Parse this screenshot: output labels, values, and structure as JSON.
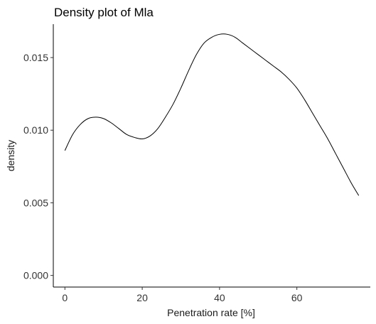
{
  "chart_data": {
    "type": "line",
    "title": "Density plot of Mla",
    "xlabel": "Penetration rate [%]",
    "ylabel": "density",
    "xlim": [
      -3,
      79
    ],
    "ylim": [
      -0.0008,
      0.0173
    ],
    "xticks": [
      0,
      20,
      40,
      60
    ],
    "xtick_labels": [
      "0",
      "20",
      "40",
      "60"
    ],
    "yticks": [
      0.0,
      0.005,
      0.01,
      0.015
    ],
    "ytick_labels": [
      "0.000",
      "0.005",
      "0.010",
      "0.015"
    ],
    "grid": false,
    "legend": "none",
    "series": [
      {
        "name": "density",
        "x": [
          0,
          2,
          4,
          6,
          8,
          10,
          12,
          14,
          16,
          18,
          20,
          22,
          24,
          26,
          28,
          30,
          32,
          34,
          36,
          38,
          40,
          42,
          44,
          46,
          48,
          50,
          52,
          54,
          56,
          58,
          60,
          62,
          64,
          66,
          68,
          70,
          72,
          74,
          76
        ],
        "y": [
          0.0086,
          0.0097,
          0.0104,
          0.0108,
          0.0109,
          0.0108,
          0.0105,
          0.0101,
          0.0097,
          0.0095,
          0.0094,
          0.0096,
          0.0101,
          0.0109,
          0.0118,
          0.0129,
          0.0141,
          0.0152,
          0.016,
          0.0164,
          0.0166,
          0.0166,
          0.0164,
          0.016,
          0.0156,
          0.0152,
          0.0148,
          0.0144,
          0.014,
          0.0135,
          0.0129,
          0.0121,
          0.0112,
          0.0103,
          0.0094,
          0.0084,
          0.0074,
          0.0064,
          0.0055
        ]
      }
    ]
  }
}
